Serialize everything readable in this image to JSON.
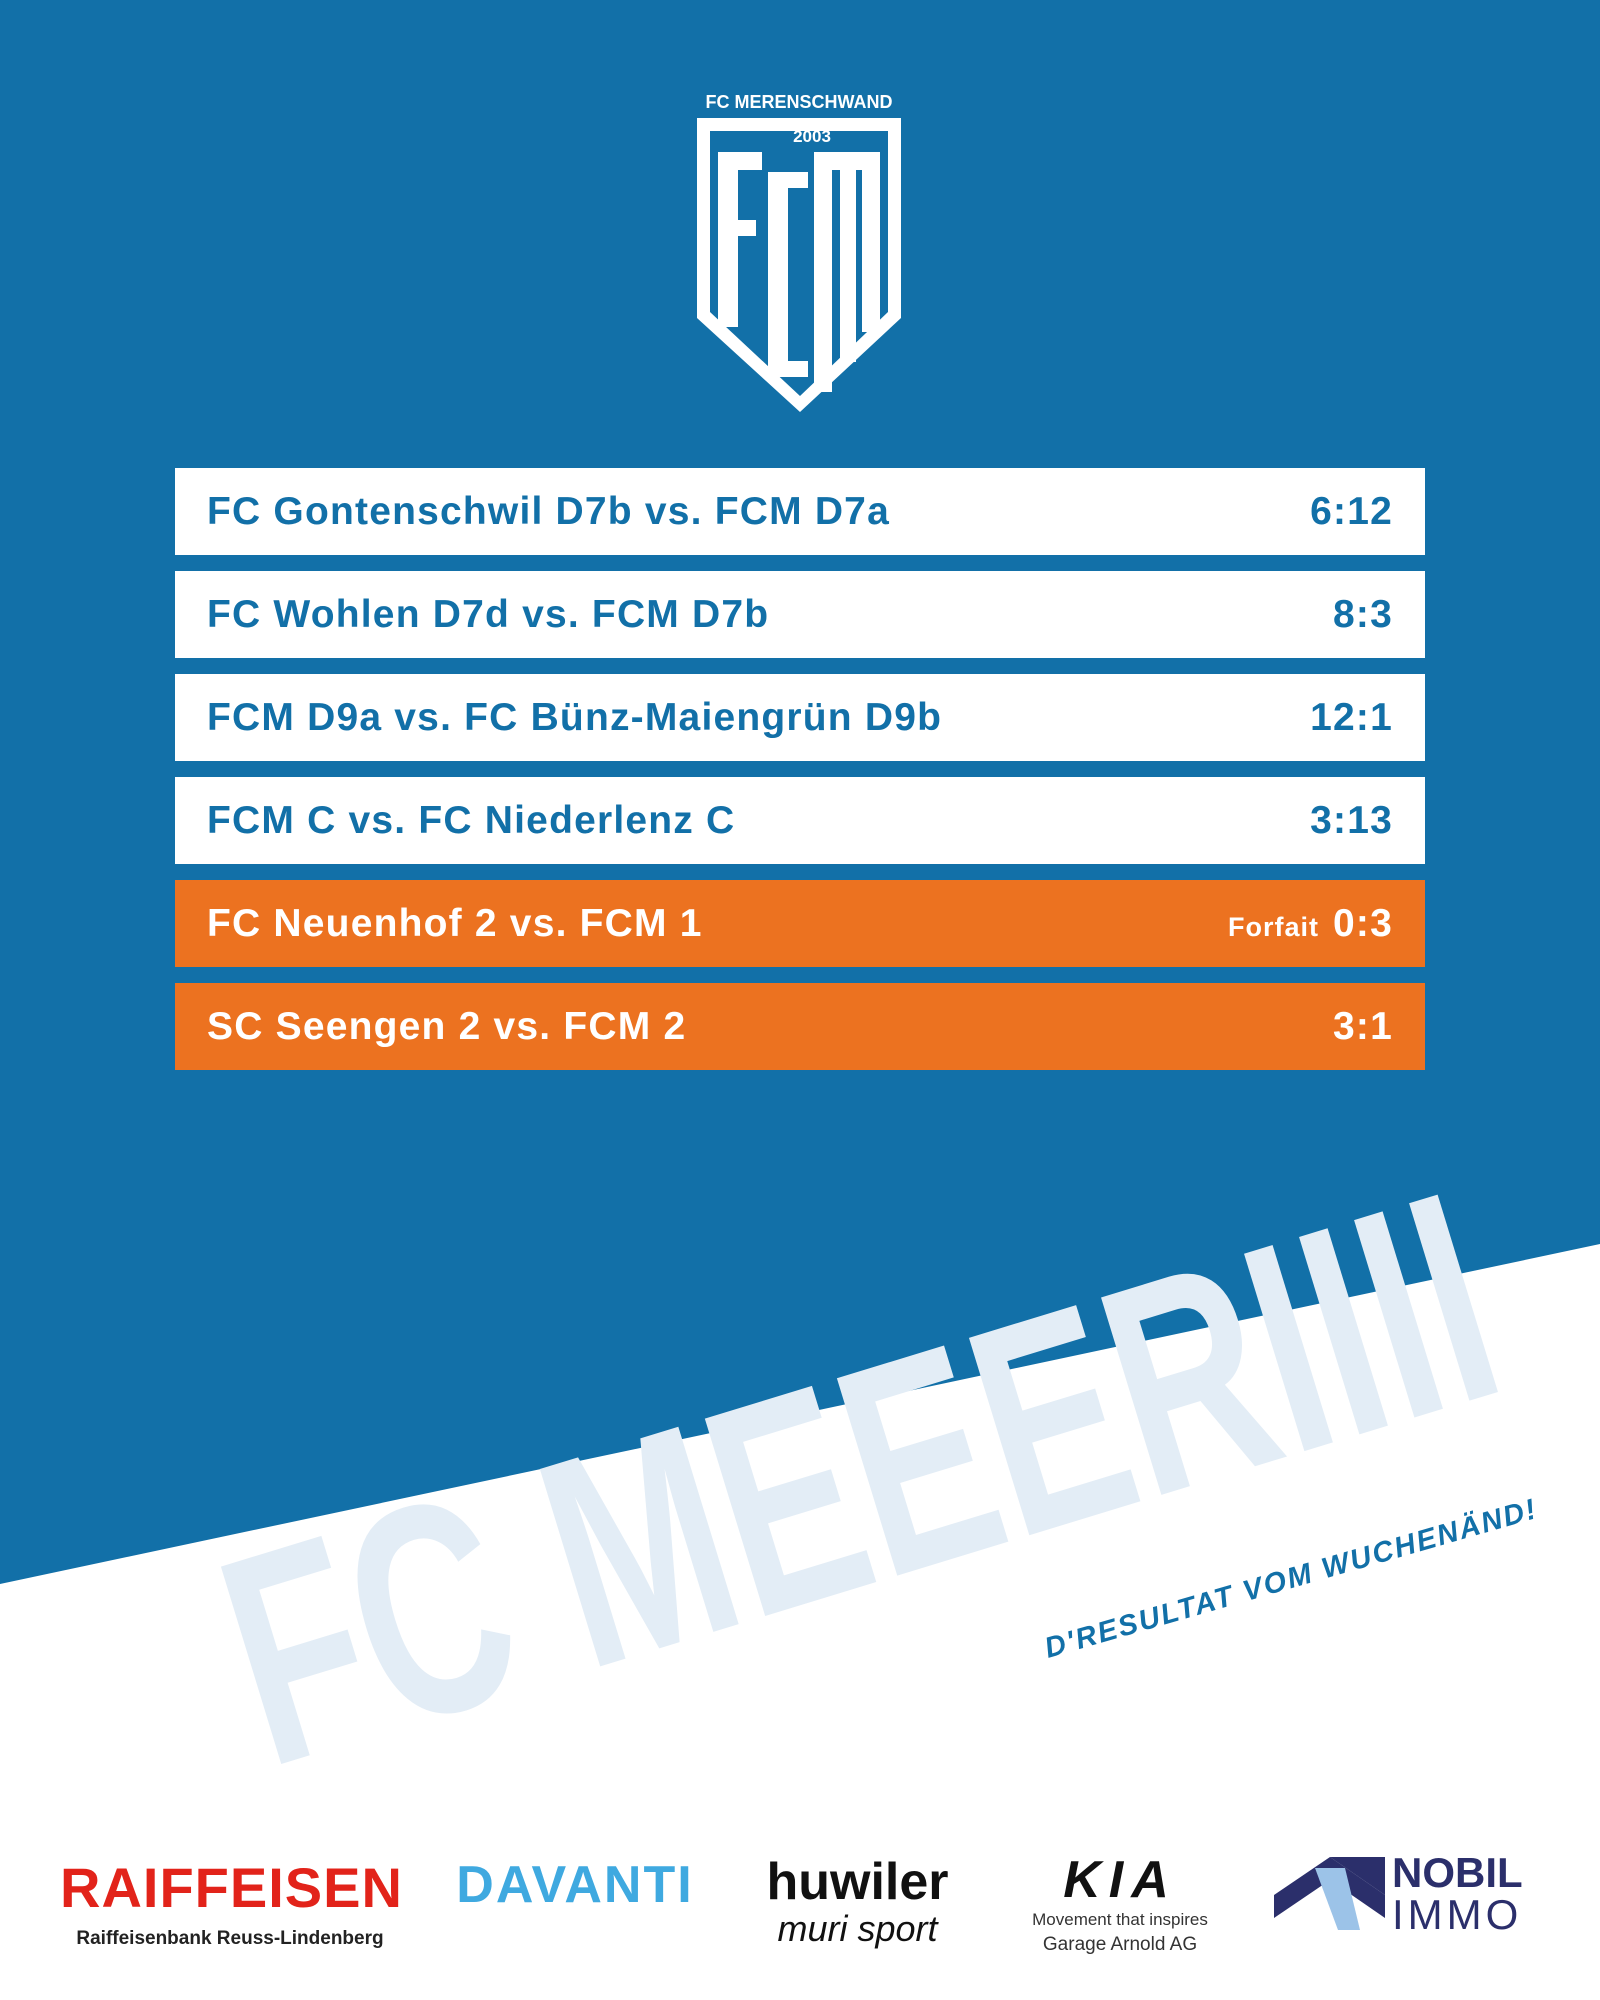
{
  "logo": {
    "club": "FC MERENSCHWAND",
    "year": "2003"
  },
  "results": [
    {
      "match": "FC Gontenschwil D7b vs. FCM D7a",
      "score": "6:12",
      "highlight": false
    },
    {
      "match": "FC Wohlen D7d vs. FCM D7b",
      "score": "8:3",
      "highlight": false
    },
    {
      "match": "FCM D9a vs. FC Bünz-Maiengrün D9b",
      "score": "12:1",
      "highlight": false
    },
    {
      "match": "FCM C vs. FC Niederlenz C",
      "score": "3:13",
      "highlight": false
    },
    {
      "match": "FC Neuenhof 2 vs. FCM 1",
      "note": "Forfait",
      "score": "0:3",
      "highlight": true
    },
    {
      "match": "SC Seengen 2 vs. FCM 2",
      "score": "3:1",
      "highlight": true
    }
  ],
  "headline": "FC MEEERIIII",
  "tagline": "D'RESULTAT VOM WUCHENÄND!",
  "sponsors": [
    {
      "name": "RAIFFEISEN",
      "sub": "Raiffeisenbank Reuss-Lindenberg"
    },
    {
      "name": "DAVANTI"
    },
    {
      "name": "huwiler",
      "sub": "muri sport"
    },
    {
      "name": "KIA",
      "sub": "Movement that inspires",
      "sub2": "Garage Arnold AG"
    },
    {
      "name": "NOBIL",
      "sub": "IMMO"
    }
  ]
}
